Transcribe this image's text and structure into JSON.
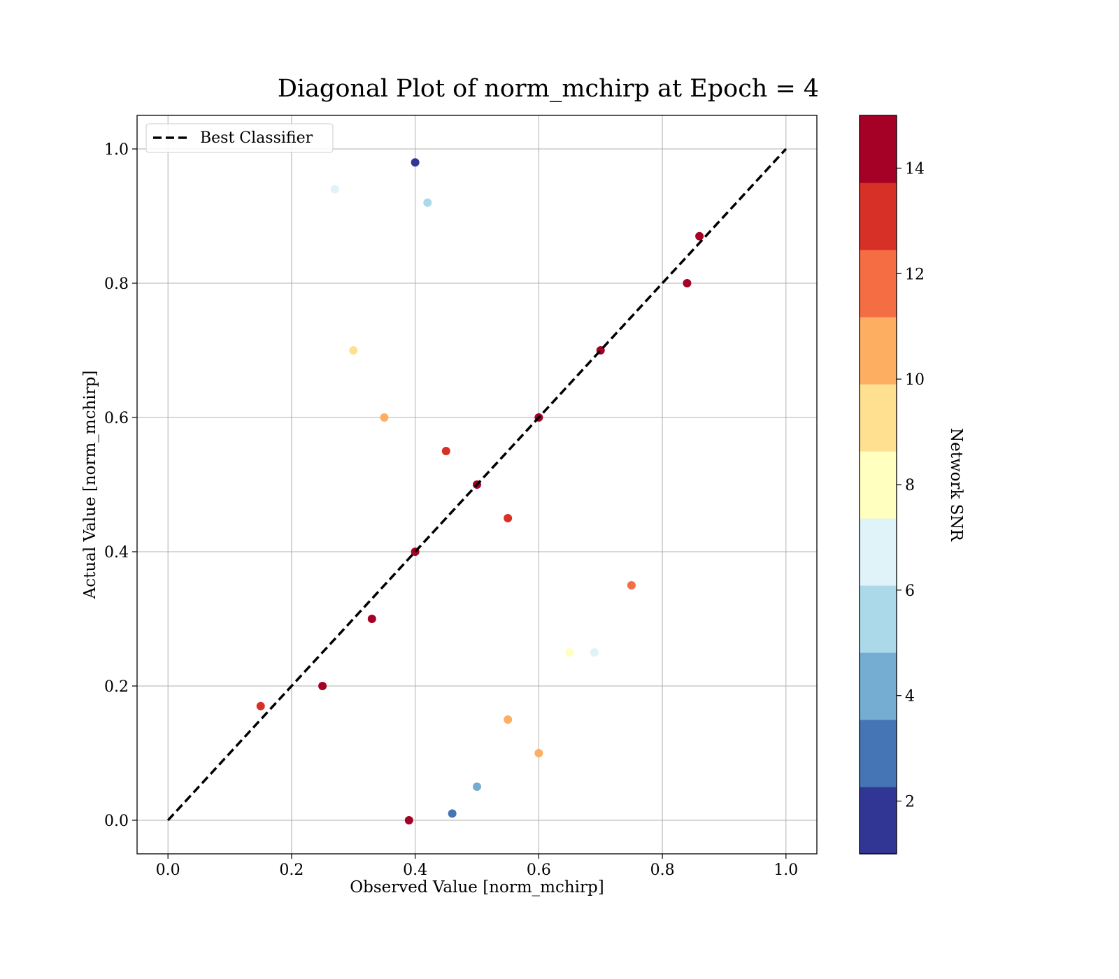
{
  "chart_data": {
    "type": "scatter",
    "title": "Diagonal Plot of norm_mchirp at Epoch = 4",
    "xlabel": "Observed Value [norm_mchirp]",
    "ylabel": "Actual Value [norm_mchirp]",
    "xlim": [
      -0.05,
      1.05
    ],
    "ylim": [
      -0.05,
      1.05
    ],
    "xticks": [
      0.0,
      0.2,
      0.4,
      0.6,
      0.8,
      1.0
    ],
    "yticks": [
      0.0,
      0.2,
      0.4,
      0.6,
      0.8,
      1.0
    ],
    "xtick_labels": [
      "0.0",
      "0.2",
      "0.4",
      "0.6",
      "0.8",
      "1.0"
    ],
    "ytick_labels": [
      "0.0",
      "0.2",
      "0.4",
      "0.6",
      "0.8",
      "1.0"
    ],
    "grid": true,
    "legend": {
      "placement": "upper-left",
      "entries": [
        "Best Classifier"
      ]
    },
    "reference_line": {
      "name": "Best Classifier",
      "x": [
        0.0,
        1.0
      ],
      "y": [
        0.0,
        1.0
      ],
      "style": "dashed",
      "color": "#000000"
    },
    "colorbar": {
      "label": "Network SNR",
      "range": [
        1,
        15
      ],
      "ticks": [
        2,
        4,
        6,
        8,
        10,
        12,
        14
      ],
      "tick_labels": [
        "2",
        "4",
        "6",
        "8",
        "10",
        "12",
        "14"
      ],
      "colors": [
        "#313695",
        "#4575b4",
        "#74add1",
        "#abd9e9",
        "#e0f3f8",
        "#ffffbf",
        "#fee090",
        "#fdae61",
        "#f46d43",
        "#d73027",
        "#a50026"
      ]
    },
    "points": [
      [
        0.4,
        0.4,
        14.0
      ],
      [
        0.33,
        0.3,
        14.0
      ],
      [
        0.5,
        0.5,
        14.0
      ],
      [
        0.6,
        0.6,
        14.0
      ],
      [
        0.7,
        0.7,
        14.0
      ],
      [
        0.25,
        0.2,
        14.0
      ],
      [
        0.45,
        0.55,
        13.0
      ],
      [
        0.55,
        0.45,
        13.0
      ],
      [
        0.35,
        0.6,
        11.0
      ],
      [
        0.3,
        0.7,
        9.0
      ],
      [
        0.42,
        0.92,
        6.0
      ],
      [
        0.4,
        0.98,
        2.0
      ],
      [
        0.55,
        0.15,
        10.0
      ],
      [
        0.5,
        0.05,
        4.0
      ],
      [
        0.6,
        0.1,
        11.0
      ],
      [
        0.27,
        0.94,
        7.0
      ],
      [
        0.65,
        0.25,
        8.0
      ],
      [
        0.69,
        0.25,
        7.0
      ],
      [
        0.84,
        0.8,
        14.0
      ],
      [
        0.86,
        0.87,
        14.0
      ],
      [
        0.15,
        0.17,
        13.0
      ],
      [
        0.46,
        0.01,
        3.0
      ],
      [
        0.39,
        0.0,
        14.0
      ],
      [
        0.75,
        0.35,
        12.0
      ]
    ]
  }
}
